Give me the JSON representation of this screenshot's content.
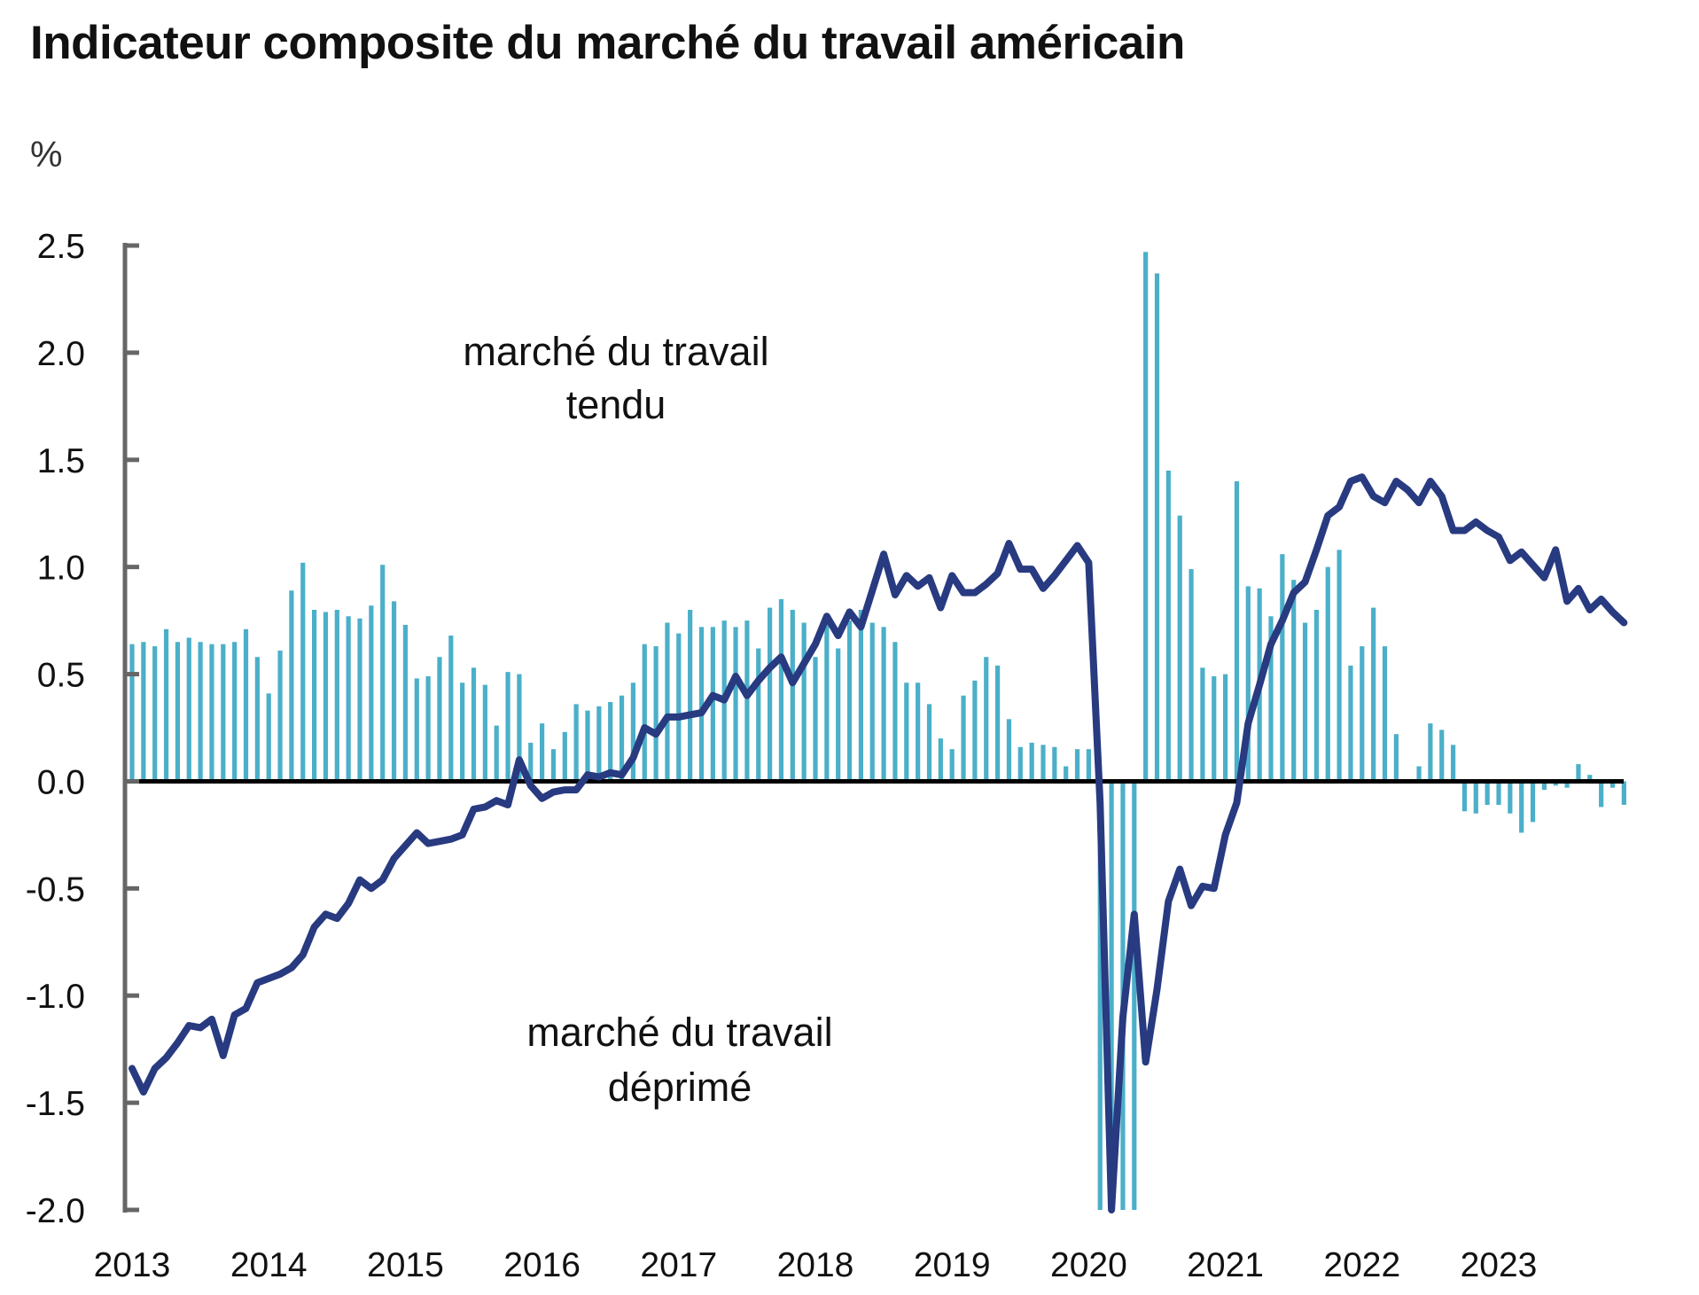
{
  "chart_data": {
    "type": "bar+line",
    "title": "Indicateur composite du marché du travail américain",
    "ylabel": "%",
    "xlabel": "",
    "ylim": [
      -2.0,
      2.5
    ],
    "yticks": [
      "2.5",
      "2.0",
      "1.5",
      "1.0",
      "0.5",
      "0.0",
      "-0.5",
      "-1.0",
      "-1.5",
      "-2.0"
    ],
    "xlim": [
      "2013-01",
      "2023-12"
    ],
    "xticks": [
      "2013",
      "2014",
      "2015",
      "2016",
      "2017",
      "2018",
      "2019",
      "2020",
      "2021",
      "2022",
      "2023"
    ],
    "x_start": "2013-01",
    "frequency": "monthly",
    "annotations": [
      {
        "lines": [
          "marché du travail",
          "tendu"
        ]
      },
      {
        "lines": [
          "marché du travail",
          "déprimé"
        ]
      }
    ],
    "colors": {
      "bars": "#4BAFC9",
      "line": "#283A80",
      "zero_line": "#000000",
      "axis": "#666666"
    },
    "series": [
      {
        "type": "bar",
        "values": [
          0.64,
          0.65,
          0.63,
          0.71,
          0.65,
          0.67,
          0.65,
          0.64,
          0.64,
          0.65,
          0.71,
          0.58,
          0.41,
          0.61,
          0.89,
          1.02,
          0.8,
          0.79,
          0.8,
          0.77,
          0.76,
          0.82,
          1.01,
          0.84,
          0.73,
          0.48,
          0.49,
          0.58,
          0.68,
          0.46,
          0.53,
          0.45,
          0.26,
          0.51,
          0.5,
          0.18,
          0.27,
          0.15,
          0.23,
          0.36,
          0.33,
          0.35,
          0.37,
          0.4,
          0.46,
          0.64,
          0.63,
          0.74,
          0.69,
          0.8,
          0.72,
          0.72,
          0.75,
          0.72,
          0.75,
          0.62,
          0.81,
          0.85,
          0.8,
          0.74,
          0.58,
          0.77,
          0.62,
          0.75,
          0.8,
          0.74,
          0.72,
          0.65,
          0.46,
          0.46,
          0.36,
          0.2,
          0.15,
          0.4,
          0.47,
          0.58,
          0.54,
          0.29,
          0.16,
          0.18,
          0.17,
          0.16,
          0.07,
          0.15,
          0.15,
          -2.1,
          -2.1,
          -2.1,
          -2.1,
          2.47,
          2.37,
          1.45,
          1.24,
          0.99,
          0.53,
          0.49,
          0.5,
          1.4,
          0.91,
          0.9,
          0.77,
          1.06,
          0.94,
          0.74,
          0.8,
          1.0,
          1.08,
          0.54,
          0.63,
          0.81,
          0.63,
          0.22,
          0.0,
          0.07,
          0.27,
          0.24,
          0.17,
          -0.14,
          -0.15,
          -0.11,
          -0.11,
          -0.15,
          -0.24,
          -0.19,
          -0.04,
          -0.02,
          -0.03,
          0.08,
          0.03,
          -0.12,
          -0.03,
          -0.11
        ]
      },
      {
        "type": "line",
        "values": [
          -1.34,
          -1.45,
          -1.34,
          -1.29,
          -1.22,
          -1.14,
          -1.15,
          -1.11,
          -1.28,
          -1.09,
          -1.06,
          -0.94,
          -0.92,
          -0.9,
          -0.87,
          -0.81,
          -0.68,
          -0.62,
          -0.64,
          -0.57,
          -0.46,
          -0.5,
          -0.46,
          -0.36,
          -0.3,
          -0.24,
          -0.29,
          -0.28,
          -0.27,
          -0.25,
          -0.13,
          -0.12,
          -0.09,
          -0.11,
          0.1,
          -0.02,
          -0.08,
          -0.05,
          -0.04,
          -0.04,
          0.03,
          0.02,
          0.04,
          0.03,
          0.11,
          0.25,
          0.22,
          0.3,
          0.3,
          0.31,
          0.32,
          0.4,
          0.38,
          0.49,
          0.4,
          0.47,
          0.53,
          0.58,
          0.46,
          0.55,
          0.64,
          0.77,
          0.68,
          0.79,
          0.72,
          0.89,
          1.06,
          0.87,
          0.96,
          0.91,
          0.95,
          0.81,
          0.96,
          0.88,
          0.88,
          0.92,
          0.97,
          1.11,
          0.99,
          0.99,
          0.9,
          0.96,
          1.03,
          1.1,
          1.02,
          -0.1,
          -2.0,
          -1.1,
          -0.62,
          -1.31,
          -0.97,
          -0.56,
          -0.41,
          -0.58,
          -0.49,
          -0.5,
          -0.25,
          -0.1,
          0.27,
          0.45,
          0.64,
          0.75,
          0.88,
          0.93,
          1.08,
          1.24,
          1.28,
          1.4,
          1.42,
          1.33,
          1.3,
          1.4,
          1.36,
          1.3,
          1.4,
          1.33,
          1.17,
          1.17,
          1.21,
          1.17,
          1.14,
          1.03,
          1.07,
          1.01,
          0.95,
          1.08,
          0.84,
          0.9,
          0.8,
          0.85,
          0.79,
          0.74
        ]
      }
    ]
  }
}
